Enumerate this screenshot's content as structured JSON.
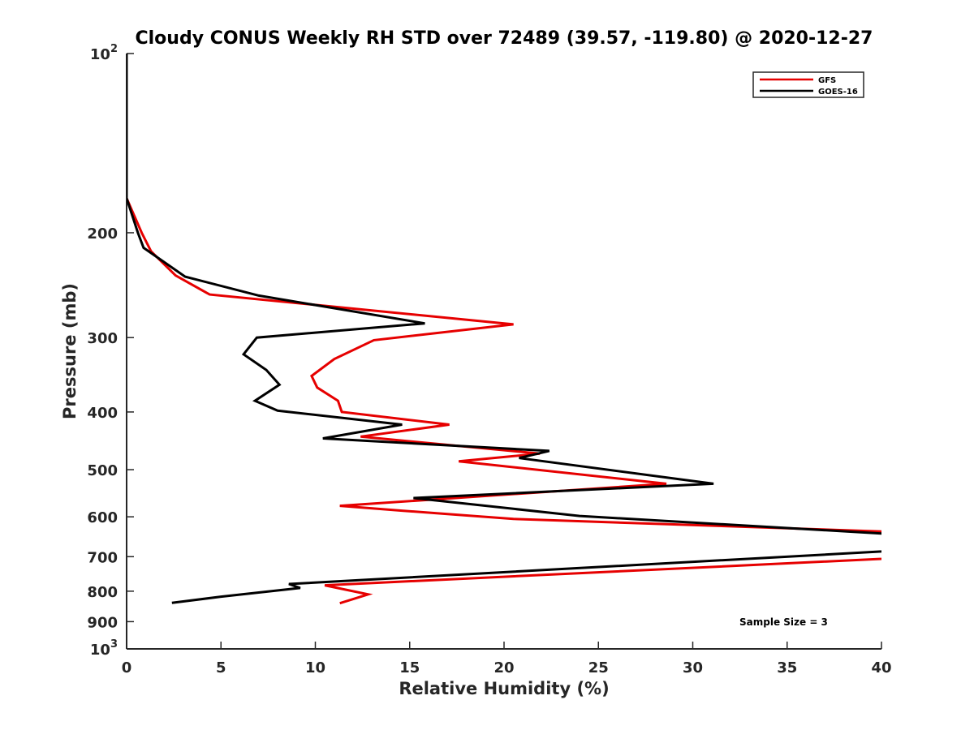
{
  "chart_data": {
    "type": "line",
    "title": "Cloudy CONUS Weekly RH STD over 72489 (39.57, -119.80) @ 2020-12-27",
    "xlabel": "Relative Humidity (%)",
    "ylabel": "Pressure (mb)",
    "xlim": [
      0,
      40
    ],
    "ylim": [
      100,
      1000
    ],
    "yscale": "log",
    "y_reversed": true,
    "x_ticks": [
      "0",
      "5",
      "10",
      "15",
      "20",
      "25",
      "30",
      "35",
      "40"
    ],
    "y_ticks": [
      {
        "value": 100,
        "base": "10",
        "exp": "2"
      },
      {
        "value": 200,
        "label": "200"
      },
      {
        "value": 300,
        "label": "300"
      },
      {
        "value": 400,
        "label": "400"
      },
      {
        "value": 500,
        "label": "500"
      },
      {
        "value": 600,
        "label": "600"
      },
      {
        "value": 700,
        "label": "700"
      },
      {
        "value": 800,
        "label": "800"
      },
      {
        "value": 900,
        "label": "900"
      },
      {
        "value": 1000,
        "base": "10",
        "exp": "3"
      }
    ],
    "grid": false,
    "legend_position": "top-right",
    "annotation": "Sample Size = 3",
    "series": [
      {
        "name": "GFS",
        "color": "#e60000",
        "points": [
          [
            0,
            100
          ],
          [
            0,
            150
          ],
          [
            0,
            175
          ],
          [
            0.8,
            200
          ],
          [
            1.3,
            215
          ],
          [
            2.6,
            236
          ],
          [
            4.4,
            254
          ],
          [
            20.5,
            285
          ],
          [
            13.1,
            303
          ],
          [
            11.0,
            326
          ],
          [
            9.8,
            348
          ],
          [
            10.1,
            364
          ],
          [
            11.2,
            383
          ],
          [
            11.4,
            400
          ],
          [
            17.1,
            420
          ],
          [
            12.4,
            440
          ],
          [
            21.9,
            470
          ],
          [
            17.6,
            484
          ],
          [
            28.6,
            528
          ],
          [
            11.3,
            575
          ],
          [
            14.6,
            586
          ],
          [
            20.5,
            605
          ],
          [
            40,
            635
          ],
          [
            40.5,
            640
          ]
        ],
        "points2": [
          [
            40.5,
            703
          ],
          [
            40,
            706
          ],
          [
            10.5,
            782
          ],
          [
            12.8,
            810
          ],
          [
            11.3,
            838
          ]
        ]
      },
      {
        "name": "GOES-16",
        "color": "#000000",
        "points": [
          [
            0,
            100
          ],
          [
            0,
            150
          ],
          [
            0,
            175
          ],
          [
            0.6,
            200
          ],
          [
            0.9,
            212
          ],
          [
            3.1,
            237
          ],
          [
            7.0,
            255
          ],
          [
            15.8,
            284
          ],
          [
            6.9,
            300
          ],
          [
            6.2,
            320
          ],
          [
            7.4,
            340
          ],
          [
            8.1,
            360
          ],
          [
            6.8,
            383
          ],
          [
            8.0,
            398
          ],
          [
            14.6,
            420
          ],
          [
            10.4,
            443
          ],
          [
            22.4,
            465
          ],
          [
            20.8,
            478
          ],
          [
            31.1,
            528
          ],
          [
            15.2,
            558
          ],
          [
            24.0,
            598
          ],
          [
            40,
            640
          ],
          [
            40.5,
            642
          ]
        ],
        "points2": [
          [
            40.5,
            683
          ],
          [
            40,
            686
          ],
          [
            8.6,
            778
          ],
          [
            9.2,
            790
          ],
          [
            5.0,
            817
          ],
          [
            2.4,
            837
          ]
        ]
      }
    ]
  }
}
